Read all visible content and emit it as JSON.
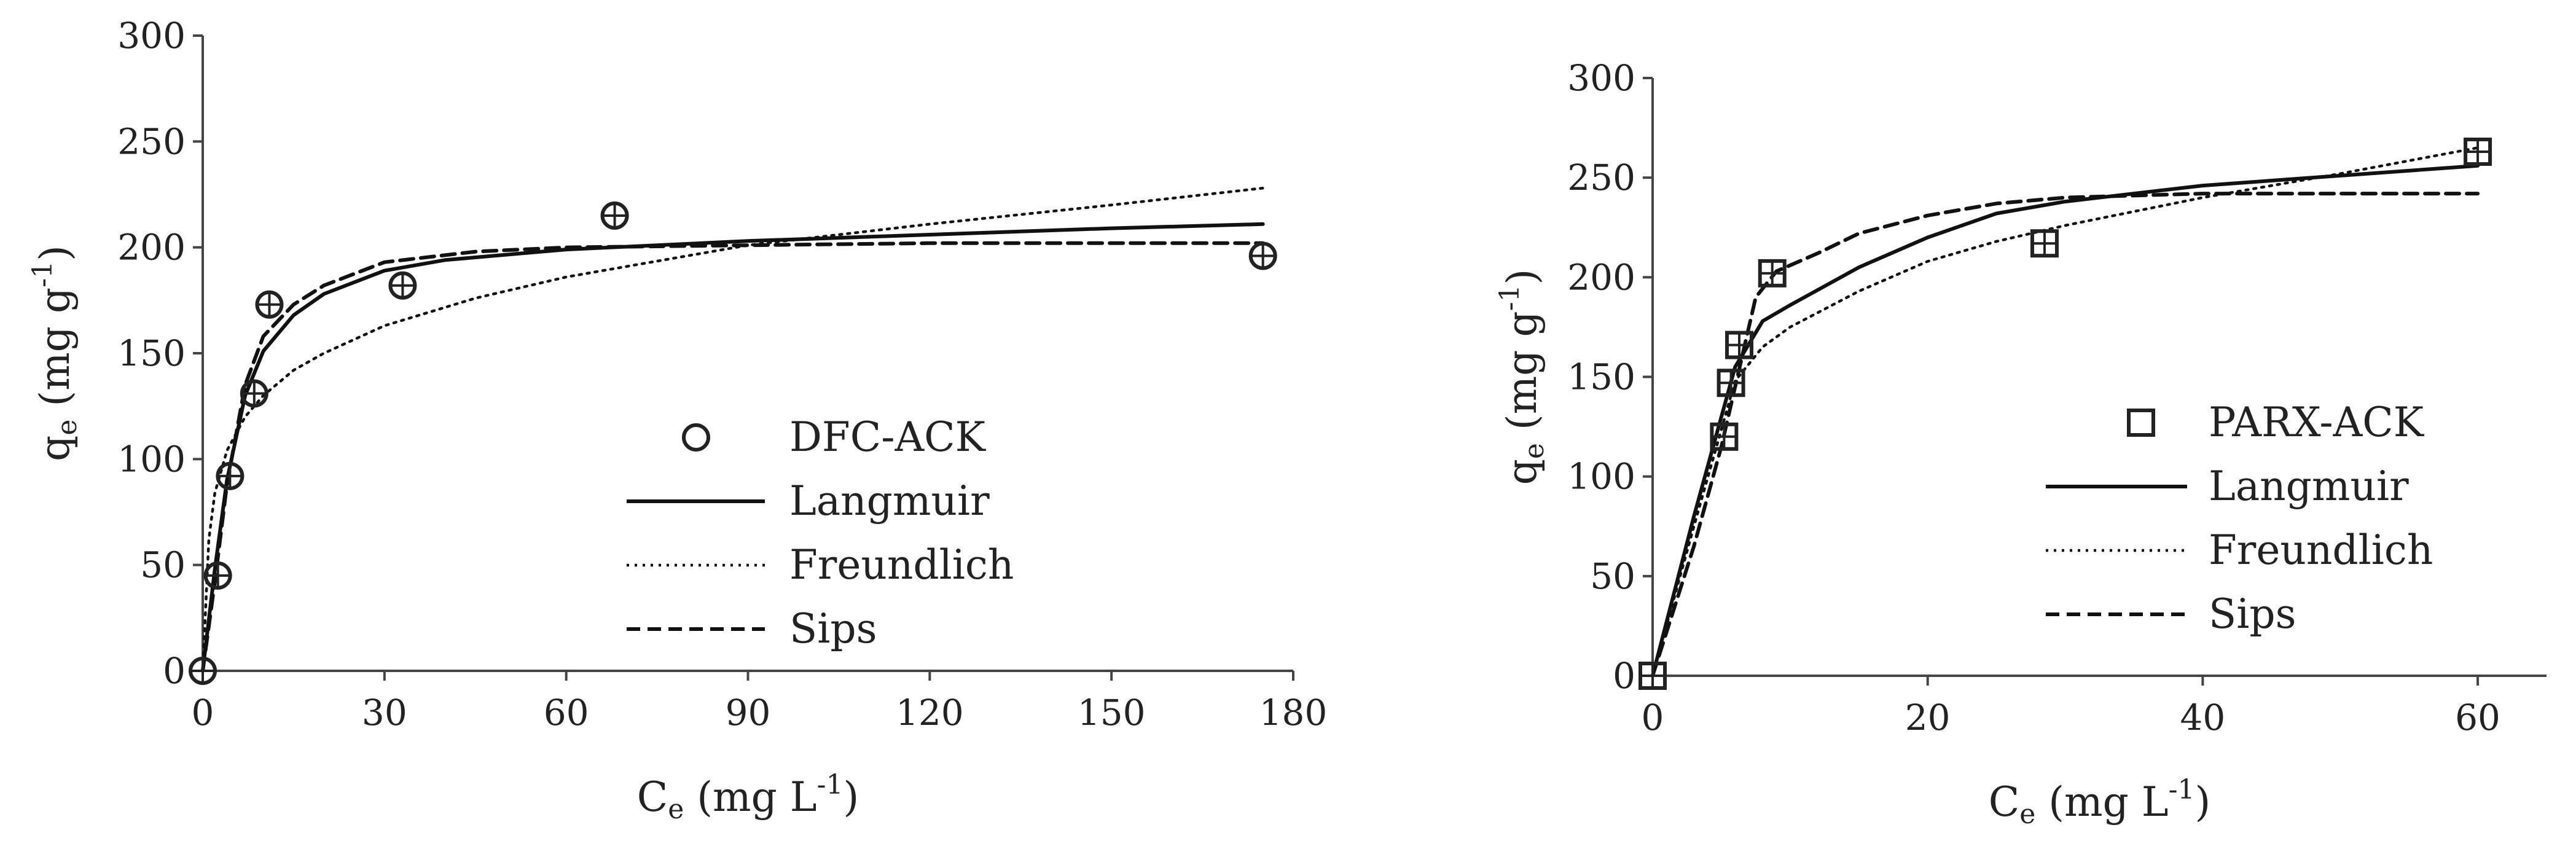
{
  "chart_data": [
    {
      "type": "scatter",
      "x_axis": {
        "label_main": "C",
        "label_sub": "e",
        "label_unit": " (mg L",
        "label_sup": "-1",
        "label_close": ")",
        "range": [
          0,
          180
        ],
        "ticks": [
          0,
          30,
          60,
          90,
          120,
          150,
          180
        ]
      },
      "y_axis": {
        "label_main": "q",
        "label_sub": "e",
        "label_unit": " (mg g",
        "label_sup": "-1",
        "label_close": ")",
        "range": [
          0,
          300
        ],
        "ticks": [
          0,
          50,
          100,
          150,
          200,
          250,
          300
        ]
      },
      "grid": false,
      "legend_position": "center-right",
      "points": {
        "name": "DFC-ACK",
        "marker": "circle",
        "x": [
          0,
          2.5,
          4.5,
          8.5,
          11,
          33,
          68,
          175
        ],
        "y": [
          0,
          45,
          92,
          131,
          173,
          182,
          215,
          196
        ]
      },
      "series": [
        {
          "name": "Langmuir",
          "style": "solid",
          "x": [
            0,
            2,
            4,
            7,
            10,
            15,
            20,
            30,
            40,
            60,
            90,
            120,
            150,
            175
          ],
          "y": [
            0,
            48,
            90,
            130,
            151,
            168,
            178,
            189,
            194,
            199,
            203,
            206,
            209,
            211
          ]
        },
        {
          "name": "Freundlich",
          "style": "dotted",
          "x": [
            0,
            1,
            2,
            4,
            7,
            10,
            15,
            20,
            30,
            45,
            60,
            90,
            120,
            150,
            175
          ],
          "y": [
            0,
            62,
            84,
            104,
            120,
            130,
            142,
            150,
            163,
            176,
            186,
            201,
            211,
            220,
            228
          ]
        },
        {
          "name": "Sips",
          "style": "dashed",
          "x": [
            0,
            2,
            4,
            7,
            10,
            15,
            20,
            30,
            45,
            60,
            90,
            120,
            175
          ],
          "y": [
            0,
            42,
            88,
            135,
            158,
            173,
            182,
            193,
            198,
            200,
            201,
            202,
            202
          ]
        }
      ]
    },
    {
      "type": "scatter",
      "x_axis": {
        "label_main": "C",
        "label_sub": "e",
        "label_unit": " (mg L",
        "label_sup": "-1",
        "label_close": ")",
        "range": [
          0,
          65
        ],
        "ticks": [
          0,
          20,
          40,
          60
        ]
      },
      "y_axis": {
        "label_main": "q",
        "label_sub": "e",
        "label_unit": " (mg g",
        "label_sup": "-1",
        "label_close": ")",
        "range": [
          0,
          300
        ],
        "ticks": [
          0,
          50,
          100,
          150,
          200,
          250,
          300
        ]
      },
      "grid": false,
      "legend_position": "center-right",
      "points": {
        "name": "PARX-ACK",
        "marker": "square",
        "x": [
          0,
          5.2,
          5.7,
          6.3,
          8.7,
          28.5,
          60
        ],
        "y": [
          0,
          120,
          147,
          166,
          202,
          217,
          263
        ]
      },
      "series": [
        {
          "name": "Langmuir",
          "style": "solid",
          "x": [
            0,
            3,
            6,
            8,
            10,
            15,
            20,
            25,
            30,
            40,
            50,
            60
          ],
          "y": [
            0,
            80,
            155,
            178,
            186,
            205,
            220,
            232,
            238,
            246,
            251,
            256
          ]
        },
        {
          "name": "Freundlich",
          "style": "dotted",
          "x": [
            0,
            3,
            6,
            8,
            10,
            15,
            20,
            25,
            30,
            40,
            50,
            60
          ],
          "y": [
            0,
            75,
            148,
            165,
            175,
            193,
            208,
            218,
            226,
            240,
            252,
            265
          ]
        },
        {
          "name": "Sips",
          "style": "dashed",
          "x": [
            0,
            3,
            5,
            6.5,
            7.5,
            9,
            12,
            15,
            20,
            25,
            30,
            40,
            50,
            60
          ],
          "y": [
            0,
            65,
            115,
            160,
            190,
            203,
            212,
            222,
            231,
            237,
            240,
            242,
            242,
            242
          ]
        }
      ]
    }
  ]
}
